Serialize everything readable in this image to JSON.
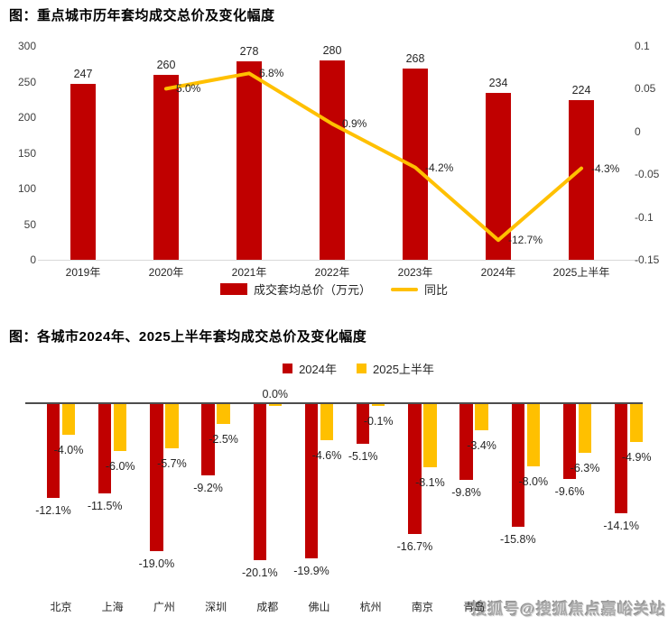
{
  "colors": {
    "bar_red": "#C00000",
    "line_yellow": "#FFC000",
    "axis_text": "#404040",
    "value_text": "#262626",
    "axis_line": "#D9D9D9",
    "zero_line": "#4D4D4D",
    "watermark_gray": "#ABABAB"
  },
  "watermark": "搜狐号@搜狐焦点嘉峪关站",
  "chart_data": [
    {
      "type": "bar",
      "combo": "bar+line",
      "title": "图：重点城市历年套均成交总价及变化幅度",
      "categories": [
        "2019年",
        "2020年",
        "2021年",
        "2022年",
        "2023年",
        "2024年",
        "2025上半年"
      ],
      "bar_series": {
        "name": "成交套均总价（万元）",
        "color": "#C00000",
        "values": [
          247,
          260,
          278,
          280,
          268,
          234,
          224
        ],
        "labels": [
          "247",
          "260",
          "278",
          "280",
          "268",
          "234",
          "224"
        ]
      },
      "line_series": {
        "name": "同比",
        "color": "#FFC000",
        "values": [
          null,
          0.05,
          0.068,
          0.009,
          -0.042,
          -0.127,
          -0.043
        ],
        "labels": [
          "",
          "5.0%",
          "6.8%",
          "0.9%",
          "-4.2%",
          "-12.7%",
          "-4.3%"
        ]
      },
      "left_axis": {
        "min": 0,
        "max": 300,
        "ticks": [
          "300",
          "250",
          "200",
          "150",
          "100",
          "50",
          "0"
        ]
      },
      "right_axis": {
        "min": -0.15,
        "max": 0.1,
        "ticks": [
          "0.1",
          "0.05",
          "0",
          "-0.05",
          "-0.1",
          "-0.15"
        ]
      },
      "legend": [
        "成交套均总价（万元）",
        "同比"
      ],
      "grid": false,
      "legend_position": "bottom-center"
    },
    {
      "type": "bar",
      "title": "图：各城市2024年、2025上半年套均成交总价及变化幅度",
      "categories": [
        "北京",
        "上海",
        "广州",
        "深圳",
        "成都",
        "佛山",
        "杭州",
        "南京",
        "青岛",
        "",
        "",
        ""
      ],
      "series": [
        {
          "name": "2024年",
          "color": "#C00000",
          "values": [
            -12.1,
            -11.5,
            -19.0,
            -9.2,
            -20.1,
            -19.9,
            -5.1,
            -16.7,
            -9.8,
            -15.8,
            -9.6,
            -14.1
          ],
          "labels": [
            "-12.1%",
            "-11.5%",
            "-19.0%",
            "-9.2%",
            "-20.1%",
            "-19.9%",
            "-5.1%",
            "-16.7%",
            "-9.8%",
            "-15.8%",
            "-9.6%",
            "-14.1%"
          ]
        },
        {
          "name": "2025上半年",
          "color": "#FFC000",
          "values": [
            -4.0,
            -6.0,
            -5.7,
            -2.5,
            0.0,
            -4.6,
            -0.1,
            -8.1,
            -3.4,
            -8.0,
            -6.3,
            -4.9
          ],
          "labels": [
            "-4.0%",
            "-6.0%",
            "-5.7%",
            "-2.5%",
            "0.0%",
            "-4.6%",
            "-0.1%",
            "-8.1%",
            "-3.4%",
            "-8.0%",
            "-6.3%",
            "-4.9%"
          ]
        }
      ],
      "ylim": [
        -22,
        0
      ],
      "grid": false,
      "legend_position": "top-center"
    }
  ]
}
